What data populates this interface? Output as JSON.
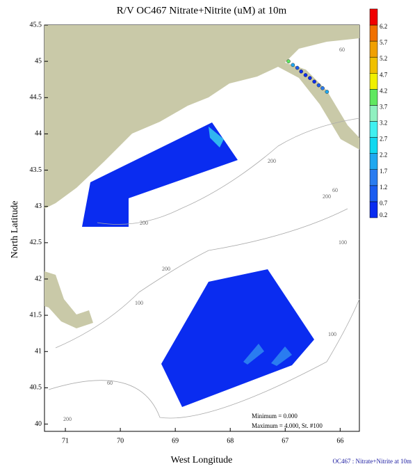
{
  "map": {
    "title": "R/V OC467 Nitrate+Nitrite (uM) at 10m",
    "x_label": "West Longitude",
    "y_label": "North Latitude",
    "xlim": [
      71.38,
      65.65
    ],
    "ylim": [
      39.9,
      45.5
    ],
    "xticks": [
      71,
      70,
      69,
      68,
      67,
      66
    ],
    "yticks": [
      40,
      40.5,
      41,
      41.5,
      42,
      42.5,
      43,
      43.5,
      44,
      44.5,
      45,
      45.5
    ],
    "colorbar": {
      "levels": [
        0.2,
        0.7,
        1.2,
        1.7,
        2.2,
        2.7,
        3.2,
        3.7,
        4.2,
        4.7,
        5.2,
        5.7,
        6.2
      ],
      "colors": [
        "#0a2cf0",
        "#1a5cf0",
        "#2a7cf0",
        "#20a8f0",
        "#10d8f0",
        "#40f0f0",
        "#90f0c0",
        "#60e860",
        "#f0f000",
        "#f0c000",
        "#f0a000",
        "#f07000",
        "#f00000"
      ]
    },
    "stations": {
      "lon": [
        66.94,
        66.86,
        66.78,
        66.71,
        66.63,
        66.55,
        66.47,
        66.39,
        66.32,
        66.24
      ],
      "lat": [
        45.0,
        44.95,
        44.91,
        44.86,
        44.81,
        44.77,
        44.72,
        44.67,
        44.63,
        44.58
      ],
      "values": [
        4.0,
        1.9,
        0.9,
        0.6,
        0.5,
        0.5,
        0.6,
        0.9,
        1.4,
        1.8
      ]
    },
    "contour_labels": [
      "60",
      "60",
      "200",
      "200",
      "100",
      "100",
      "200",
      "60",
      "200",
      "200",
      "100"
    ],
    "minimum": "Minimum = 0.000",
    "maximum": "Maximum = 4.000, St. #100",
    "footer": "OC467 : Nitrate+Nitrite at 10m"
  }
}
